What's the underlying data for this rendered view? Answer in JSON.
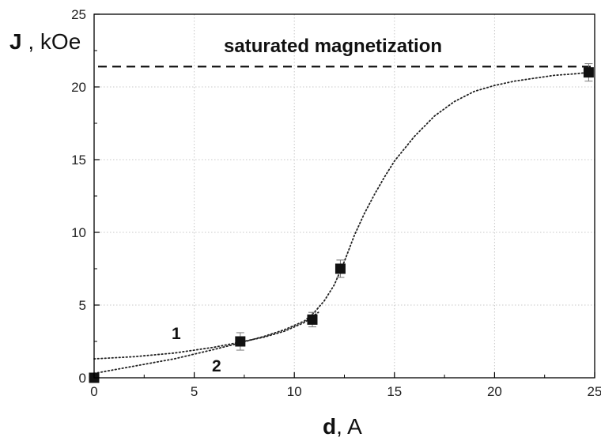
{
  "chart_data": {
    "type": "scatter",
    "xlabel_bold": "d",
    "xlabel_rest": ", A",
    "ylabel_bold": "J",
    "ylabel_rest": " , kOe",
    "xlim": [
      0,
      25
    ],
    "ylim": [
      0,
      25
    ],
    "x_ticks": [
      "0",
      "5",
      "10",
      "15",
      "20",
      "25"
    ],
    "y_ticks": [
      "0",
      "5",
      "10",
      "15",
      "20",
      "25"
    ],
    "grid": true,
    "annotation": "saturated magnetization",
    "saturation_level": 21.4,
    "points": [
      {
        "x": 0,
        "y": 0,
        "err": 0
      },
      {
        "x": 7.3,
        "y": 2.5,
        "err": 0.6
      },
      {
        "x": 10.9,
        "y": 4.0,
        "err": 0.5
      },
      {
        "x": 12.3,
        "y": 7.5,
        "err": 0.6
      },
      {
        "x": 24.7,
        "y": 21.0,
        "err": 0.6
      }
    ],
    "curve_labels": [
      "1",
      "2"
    ],
    "curves": [
      {
        "label": "1",
        "x": [
          0,
          2,
          4,
          6,
          7.3,
          8.5,
          9.5,
          10.5,
          11.2
        ],
        "y": [
          1.3,
          1.45,
          1.7,
          2.1,
          2.45,
          2.8,
          3.2,
          3.8,
          4.5
        ]
      },
      {
        "label": "2",
        "x": [
          0,
          2,
          4,
          6,
          7.3,
          8.5,
          9.5,
          10.5,
          11,
          11.5,
          12,
          12.5,
          13,
          13.5,
          14,
          14.5,
          15,
          16,
          17,
          18,
          19,
          20,
          21,
          22,
          23,
          24,
          24.7
        ],
        "y": [
          0.3,
          0.8,
          1.3,
          1.95,
          2.4,
          2.85,
          3.3,
          3.9,
          4.5,
          5.3,
          6.4,
          8.0,
          9.8,
          11.3,
          12.6,
          13.8,
          14.9,
          16.6,
          18.0,
          19.0,
          19.7,
          20.1,
          20.4,
          20.6,
          20.8,
          20.9,
          21.0
        ]
      }
    ]
  }
}
